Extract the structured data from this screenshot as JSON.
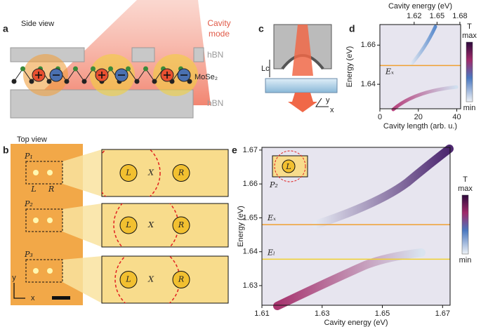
{
  "panels": {
    "a": {
      "letter": "a",
      "title": "Side view",
      "cavity": [
        "Cavity",
        "mode"
      ],
      "hbn_top": "hBN",
      "hbn_bottom": "hBN",
      "layer": "MoSe₂"
    },
    "b": {
      "letter": "b",
      "title": "Top view",
      "sites": [
        "P₁",
        "P₂",
        "P₃"
      ],
      "spots": [
        "L",
        "R"
      ],
      "axes": [
        "y",
        "x"
      ],
      "zooms": [
        [
          "L",
          "X",
          "R"
        ],
        [
          "L",
          "X",
          "R"
        ],
        [
          "L",
          "X",
          "R"
        ]
      ]
    },
    "c": {
      "letter": "c",
      "gap": "Lc",
      "axes": [
        "y",
        "x"
      ]
    }
  },
  "chart_data": [
    {
      "type": "heatmap",
      "letter": "d",
      "x_label": "Cavity length (arb. u.)",
      "x2_label": "Cavity energy (eV)",
      "y_label": "Energy (eV)",
      "xlim": [
        0,
        42
      ],
      "xticks": [
        0,
        20,
        40
      ],
      "x2lim": [
        1.575,
        1.681
      ],
      "x2ticks": [
        1.62,
        1.65,
        1.68
      ],
      "ylim": [
        1.6275,
        1.6705
      ],
      "yticks": [
        1.64,
        1.66
      ],
      "hlines": [
        {
          "label": "Eₓ",
          "value": 1.6496,
          "color": "#f0a030"
        }
      ],
      "colorbar": {
        "title": "T",
        "high": "max",
        "low": "min"
      }
    },
    {
      "type": "heatmap",
      "letter": "e",
      "x_label": "Cavity energy (eV)",
      "y_label": "Energy (eV)",
      "xlim": [
        1.61,
        1.6725
      ],
      "xticks": [
        1.61,
        1.63,
        1.65,
        1.67
      ],
      "ylim": [
        1.6242,
        1.6708
      ],
      "yticks": [
        1.63,
        1.64,
        1.65,
        1.66,
        1.67
      ],
      "hlines": [
        {
          "label": "Eₓ",
          "value": 1.648,
          "color": "#f0a030"
        },
        {
          "label": "Eₗ",
          "value": 1.6378,
          "color": "#f0d030"
        }
      ],
      "annotations": [
        "P₂",
        "L"
      ],
      "colorbar": {
        "title": "T",
        "high": "max",
        "low": "min"
      }
    }
  ]
}
